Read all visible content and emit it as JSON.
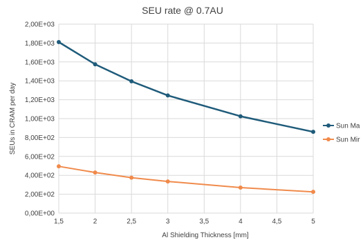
{
  "chart_data": {
    "type": "line",
    "title": "SEU rate @ 0.7AU",
    "xlabel": "Al Shielding Thickness [mm]",
    "ylabel": "SEUs in CRAM per day",
    "xlim": [
      1.5,
      5
    ],
    "ylim": [
      0,
      2000
    ],
    "x_ticks": [
      1.5,
      2,
      2.5,
      3,
      3.5,
      4,
      4.5,
      5
    ],
    "x_tick_labels": [
      "1,5",
      "2",
      "2,5",
      "3",
      "3,5",
      "4",
      "4,5",
      "5"
    ],
    "y_ticks": [
      0,
      200,
      400,
      600,
      800,
      1000,
      1200,
      1400,
      1600,
      1800,
      2000
    ],
    "y_tick_labels": [
      "0,00E+00",
      "2,00E+02",
      "4,00E+02",
      "6,00E+02",
      "8,00E+02",
      "1,00E+03",
      "1,20E+03",
      "1,40E+03",
      "1,60E+03",
      "1,80E+03",
      "2,00E+03"
    ],
    "grid": true,
    "legend_position": "right",
    "series": [
      {
        "name": "Sun Ma",
        "color": "#1f5b7a",
        "x": [
          1.5,
          2,
          2.5,
          3,
          4,
          5
        ],
        "y": [
          1810,
          1575,
          1395,
          1245,
          1025,
          860
        ]
      },
      {
        "name": "Sun Mir",
        "color": "#f08a4b",
        "x": [
          1.5,
          2,
          2.5,
          3,
          4,
          5
        ],
        "y": [
          495,
          430,
          375,
          335,
          270,
          225
        ]
      }
    ]
  }
}
